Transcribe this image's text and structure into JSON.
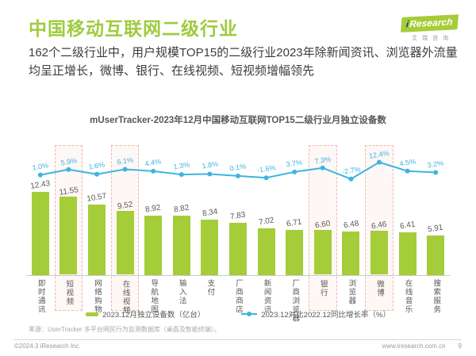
{
  "header": {
    "title": "中国移动互联网二级行业",
    "subtitle": "162个二级行业中，用户规模TOP15的二级行业2023年除新闻资讯、浏览器外流量均呈正增长，微博、银行、在线视频、短视频增幅领先",
    "logo": {
      "i": "i",
      "name": "Research",
      "tagline": "艾瑞咨询"
    }
  },
  "chart_data": {
    "type": "bar",
    "title": "mUserTracker-2023年12月中国移动互联网TOP15二级行业月独立设备数",
    "categories": [
      "即时通讯",
      "短视频",
      "网络购物",
      "在线视频",
      "导航地图",
      "输入法",
      "支付",
      "厂商商店",
      "新闻资讯",
      "厂商浏览器",
      "银行",
      "浏览器",
      "微博",
      "在线音乐",
      "搜索服务"
    ],
    "series": [
      {
        "name": "2023.12月独立设备数（亿台）",
        "type": "bar",
        "color": "#a5cd39",
        "values": [
          12.43,
          11.55,
          10.57,
          9.52,
          8.92,
          8.82,
          8.34,
          7.83,
          7.02,
          6.71,
          6.6,
          6.48,
          6.46,
          6.41,
          5.91
        ]
      },
      {
        "name": "2023.12对比2022.12同比增长率（%）",
        "type": "line",
        "color": "#3db4e0",
        "values": [
          1.0,
          5.9,
          1.6,
          6.1,
          4.4,
          1.3,
          1.8,
          0.1,
          -1.6,
          3.7,
          7.3,
          -2.7,
          12.4,
          4.5,
          3.2
        ]
      }
    ],
    "highlighted_categories": [
      "短视频",
      "在线视频",
      "银行",
      "微博"
    ],
    "ylim": [
      0,
      14
    ],
    "line_ylim": [
      -5,
      15
    ],
    "grid": false,
    "legend_position": "bottom"
  },
  "footer": {
    "source": "来源：UserTracker 多平台网民行为监测数据库（桌面及智能终端）。",
    "copyright": "©2024.3 iResearch Inc.",
    "website": "www.iresearch.com.cn",
    "page_number": "9"
  },
  "colors": {
    "accent_green": "#a5cd39",
    "accent_blue": "#3db4e0",
    "title_green": "#9fcb3e",
    "highlight_border": "#f0b9ae",
    "text_dark": "#3f3b3a",
    "text_gray": "#595757",
    "text_light": "#9a9a9a"
  }
}
